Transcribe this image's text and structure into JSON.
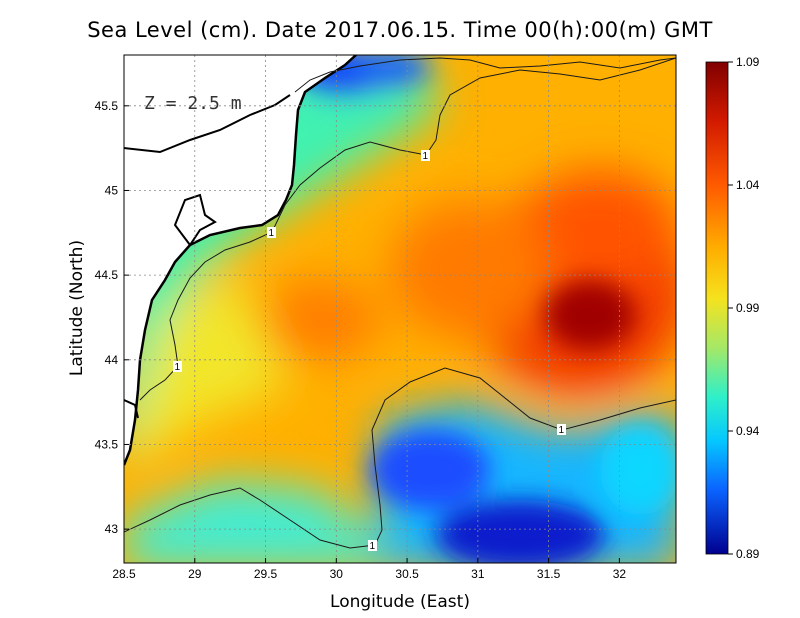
{
  "title": "Sea Level (cm). Date 2017.06.15. Time 00(h):00(m) GMT",
  "depth_label": "Z = 2.5 m",
  "x_axis": {
    "label": "Longitude (East)",
    "ticks": [
      "28.5",
      "29",
      "29.5",
      "30",
      "30.5",
      "31",
      "31.5",
      "32"
    ],
    "range": [
      28.5,
      32.4
    ]
  },
  "y_axis": {
    "label": "Latitude (North)",
    "ticks": [
      "43",
      "43.5",
      "44",
      "44.5",
      "45",
      "45.5"
    ],
    "range": [
      42.8,
      45.8
    ]
  },
  "colorbar": {
    "ticks": [
      "1.09",
      "1.04",
      "0.99",
      "0.94",
      "0.89"
    ],
    "min": 0.89,
    "max": 1.09
  },
  "contour_labels": [
    "1",
    "1",
    "1",
    "1",
    "1"
  ],
  "colors": {
    "high": "#800000",
    "low": "#00008f",
    "land": "#ffffff",
    "coast": "#000000",
    "grid": "#9a9a9a"
  }
}
